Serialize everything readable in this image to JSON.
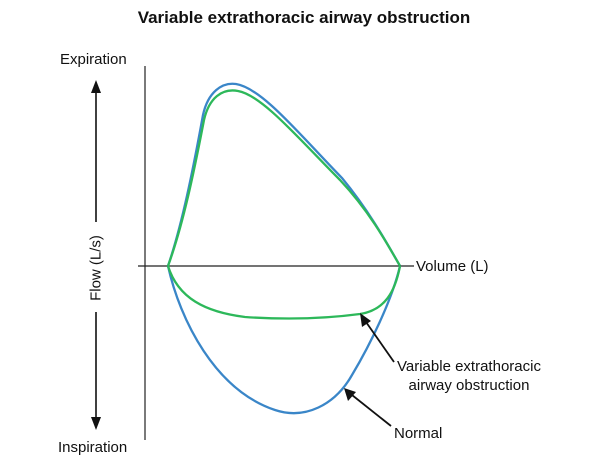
{
  "title": "Variable extrathoracic airway obstruction",
  "labels": {
    "expiration": "Expiration",
    "inspiration": "Inspiration",
    "flow_axis": "Flow (L/s)",
    "volume_axis": "Volume (L)",
    "variable_line1": "Variable extrathoracic",
    "variable_line2": "airway obstruction",
    "normal": "Normal"
  },
  "colors": {
    "normal_curve": "#3a86c8",
    "obstruction_curve": "#2db85a",
    "axis": "#222222"
  },
  "legend": [
    {
      "name": "Normal",
      "color": "#3a86c8"
    },
    {
      "name": "Variable extrathoracic airway obstruction",
      "color": "#2db85a"
    }
  ]
}
